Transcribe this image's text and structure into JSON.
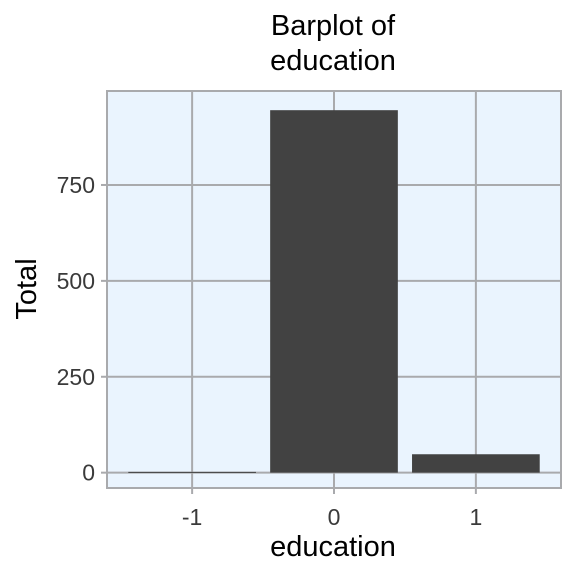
{
  "chart_data": {
    "type": "bar",
    "title_lines": [
      "Barplot of",
      "education"
    ],
    "xlabel": "education",
    "ylabel": "Total",
    "categories": [
      "-1",
      "0",
      "1"
    ],
    "values": [
      2,
      945,
      48
    ],
    "ylim": [
      -40,
      995
    ],
    "yticks": [
      0,
      250,
      500,
      750
    ],
    "grid": true,
    "colors": {
      "bar": "#424242",
      "panel_background": "#eaf4fe",
      "grid": "#a9aaad"
    }
  }
}
